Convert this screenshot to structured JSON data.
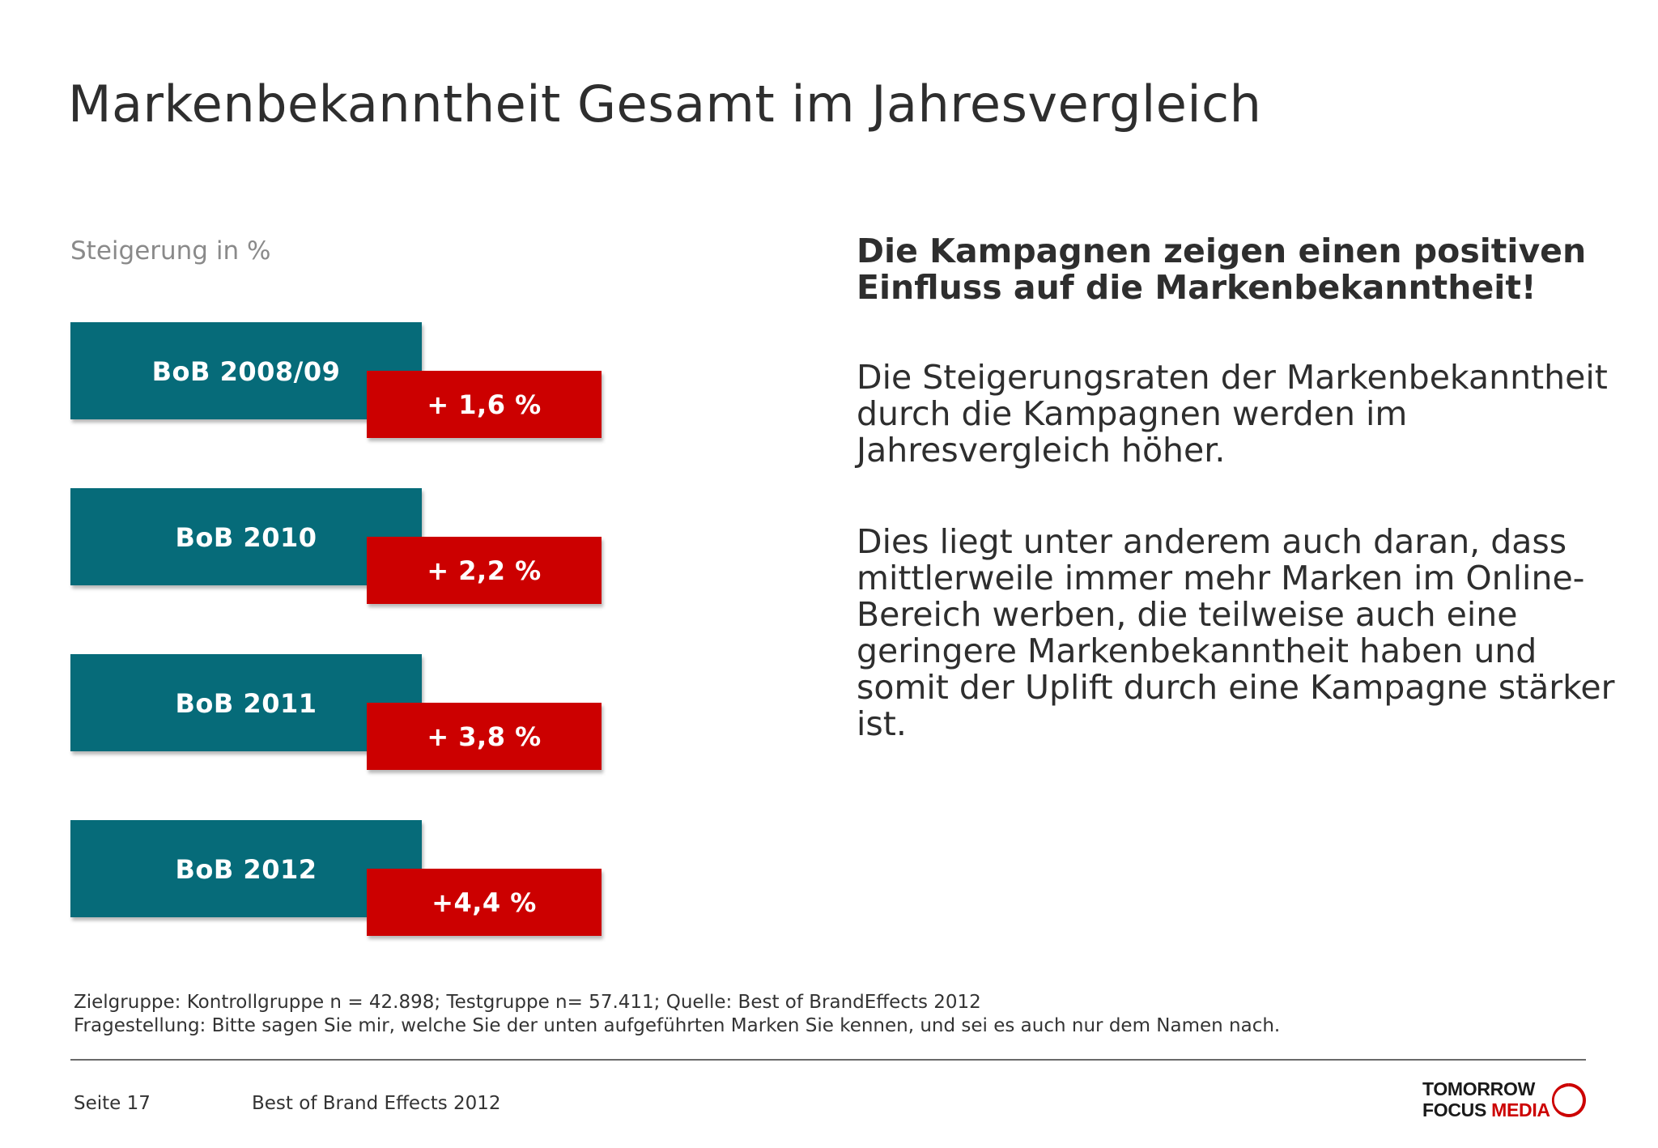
{
  "header": {
    "title": "Markenbekanntheit Gesamt im Jahresvergleich"
  },
  "chart": {
    "subtitle": "Steigerung in %",
    "rows": [
      {
        "label": "BoB 2008/09",
        "value_label": "+ 1,6 %"
      },
      {
        "label": "BoB 2010",
        "value_label": "+ 2,2 %"
      },
      {
        "label": "BoB 2011",
        "value_label": "+ 3,8 %"
      },
      {
        "label": "BoB 2012",
        "value_label": "+4,4 %"
      }
    ],
    "colors": {
      "year_box": "#066b79",
      "value_box": "#cc0000"
    }
  },
  "text": {
    "headline": "Die Kampagnen zeigen einen positiven Einfluss auf die Markenbekanntheit!",
    "paragraph1": "Die Steigerungsraten der Markenbekanntheit durch die Kampagnen werden im Jahresvergleich höher.",
    "paragraph2": "Dies liegt unter anderem auch daran, dass mittlerweile immer mehr Marken im Online-Bereich werben, die teilweise auch eine geringere Markenbekanntheit haben und somit der Uplift durch eine Kampagne stärker ist."
  },
  "footnote": {
    "line1": "Zielgruppe: Kontrollgruppe n = 42.898; Testgruppe n= 57.411; Quelle: Best of BrandEffects 2012",
    "line2": "Fragestellung: Bitte sagen Sie mir, welche Sie der unten aufgeführten Marken Sie kennen, und sei es auch nur dem Namen nach."
  },
  "footer": {
    "page": "Seite 17",
    "doc_title": "Best of Brand Effects 2012",
    "logo": {
      "line1": "TOMORROW",
      "line2a": "FOCUS",
      "line2b": "MEDIA",
      "icon": "tomorrow-focus-ring-icon"
    }
  }
}
